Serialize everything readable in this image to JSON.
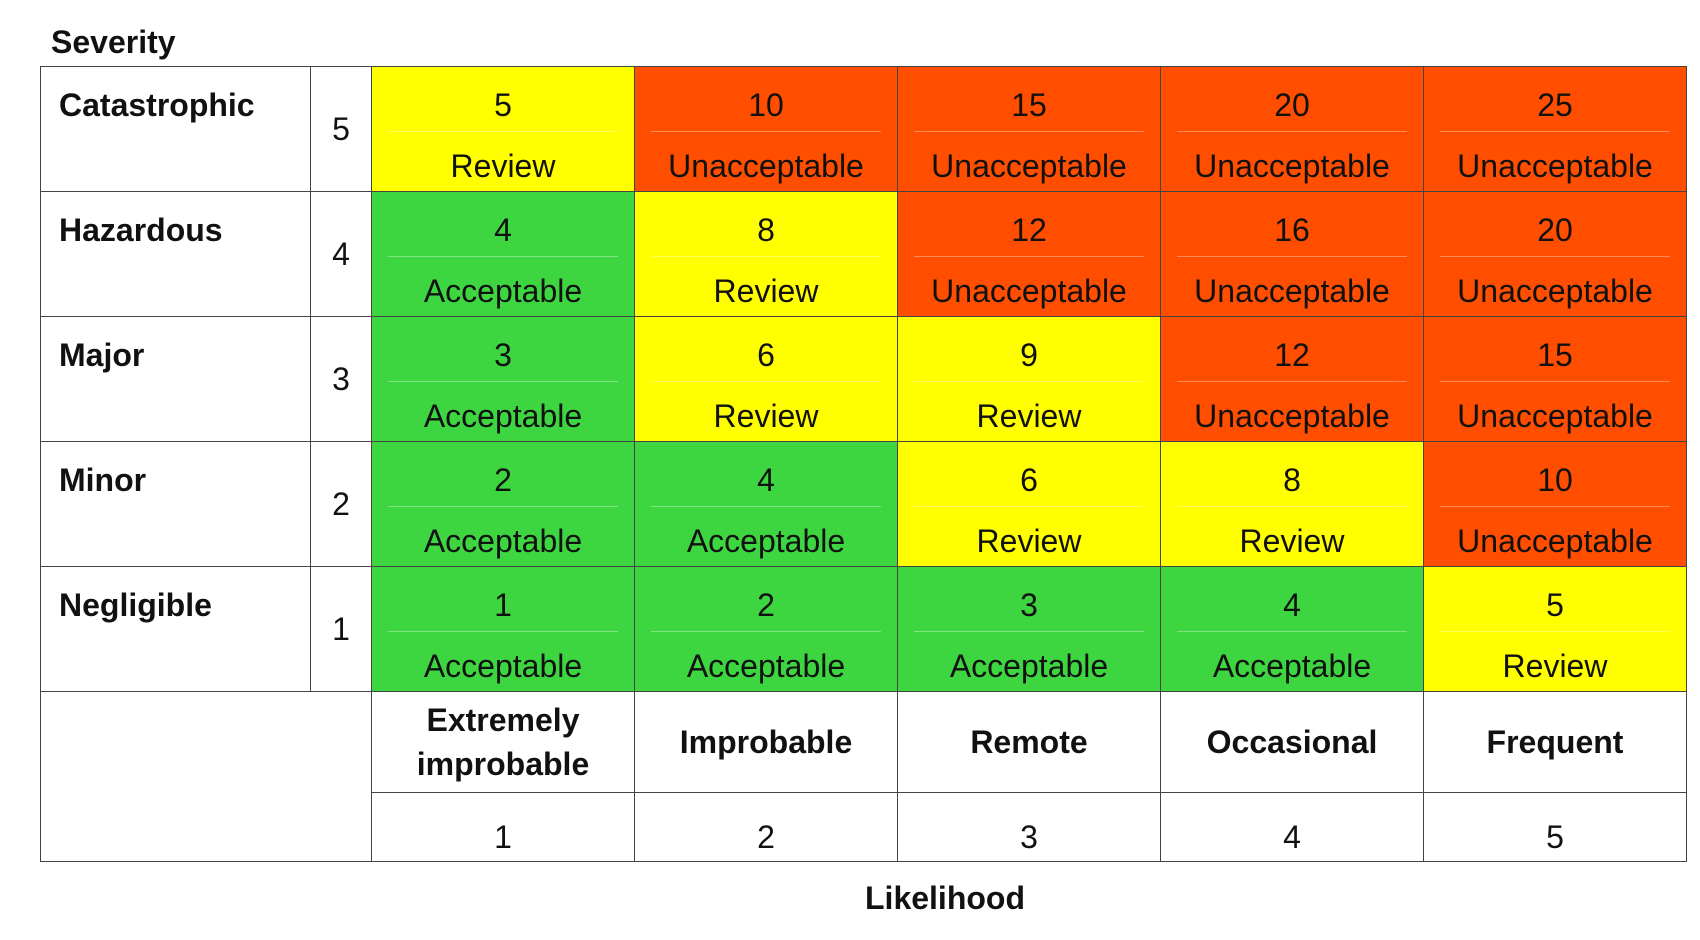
{
  "severity_title": "Severity",
  "likelihood_title": "Likelihood",
  "colors": {
    "acceptable": "#3dd640",
    "review": "#ffff00",
    "unacceptable": "#ff4e00"
  },
  "severity_rows": [
    {
      "name": "Catastrophic",
      "value": "5",
      "cells": [
        {
          "score": "5",
          "rating": "Review"
        },
        {
          "score": "10",
          "rating": "Unacceptable"
        },
        {
          "score": "15",
          "rating": "Unacceptable"
        },
        {
          "score": "20",
          "rating": "Unacceptable"
        },
        {
          "score": "25",
          "rating": "Unacceptable"
        }
      ]
    },
    {
      "name": "Hazardous",
      "value": "4",
      "cells": [
        {
          "score": "4",
          "rating": "Acceptable"
        },
        {
          "score": "8",
          "rating": "Review"
        },
        {
          "score": "12",
          "rating": "Unacceptable"
        },
        {
          "score": "16",
          "rating": "Unacceptable"
        },
        {
          "score": "20",
          "rating": "Unacceptable"
        }
      ]
    },
    {
      "name": "Major",
      "value": "3",
      "cells": [
        {
          "score": "3",
          "rating": "Acceptable"
        },
        {
          "score": "6",
          "rating": "Review"
        },
        {
          "score": "9",
          "rating": "Review"
        },
        {
          "score": "12",
          "rating": "Unacceptable"
        },
        {
          "score": "15",
          "rating": "Unacceptable"
        }
      ]
    },
    {
      "name": "Minor",
      "value": "2",
      "cells": [
        {
          "score": "2",
          "rating": "Acceptable"
        },
        {
          "score": "4",
          "rating": "Acceptable"
        },
        {
          "score": "6",
          "rating": "Review"
        },
        {
          "score": "8",
          "rating": "Review"
        },
        {
          "score": "10",
          "rating": "Unacceptable"
        }
      ]
    },
    {
      "name": "Negligible",
      "value": "1",
      "cells": [
        {
          "score": "1",
          "rating": "Acceptable"
        },
        {
          "score": "2",
          "rating": "Acceptable"
        },
        {
          "score": "3",
          "rating": "Acceptable"
        },
        {
          "score": "4",
          "rating": "Acceptable"
        },
        {
          "score": "5",
          "rating": "Review"
        }
      ]
    }
  ],
  "likelihood_columns": [
    {
      "name": "Extremely improbable",
      "value": "1"
    },
    {
      "name": "Improbable",
      "value": "2"
    },
    {
      "name": "Remote",
      "value": "3"
    },
    {
      "name": "Occasional",
      "value": "4"
    },
    {
      "name": "Frequent",
      "value": "5"
    }
  ]
}
